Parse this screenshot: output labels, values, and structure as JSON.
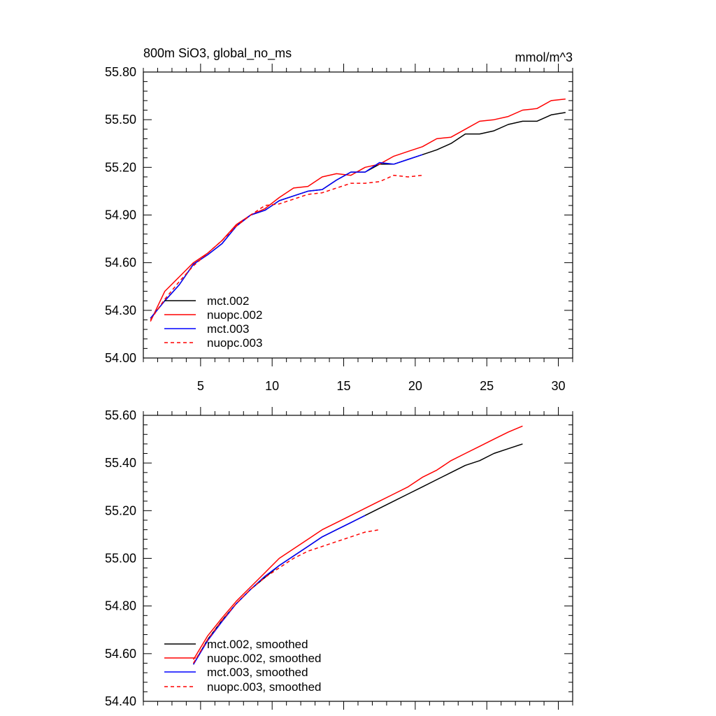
{
  "chart_data": [
    {
      "type": "line",
      "title": "800m SiO3, global_no_ms",
      "units": "mmol/m^3",
      "xlim": [
        1,
        31
      ],
      "ylim": [
        54.0,
        55.8
      ],
      "yticks": [
        "54.00",
        "54.30",
        "54.60",
        "54.90",
        "55.20",
        "55.50",
        "55.80"
      ],
      "xticks": [
        "5",
        "10",
        "15",
        "20",
        "25",
        "30"
      ],
      "legend_position": "bottom-left",
      "series": [
        {
          "name": "mct.002",
          "color": "#000000",
          "dash": "solid",
          "x": [
            1.5,
            2.5,
            3.5,
            4.5,
            5.5,
            6.5,
            7.5,
            8.5,
            9.5,
            10.5,
            11.5,
            12.5,
            13.5,
            14.5,
            15.5,
            16.5,
            17.5,
            18.5,
            19.5,
            20.5,
            21.5,
            22.5,
            23.5,
            24.5,
            25.5,
            26.5,
            27.5,
            28.5,
            29.5,
            30.5
          ],
          "y": [
            54.25,
            54.36,
            54.46,
            54.59,
            54.65,
            54.72,
            54.83,
            54.9,
            54.93,
            54.99,
            55.02,
            55.05,
            55.06,
            55.12,
            55.17,
            55.17,
            55.22,
            55.22,
            55.25,
            55.28,
            55.31,
            55.35,
            55.41,
            55.41,
            55.43,
            55.47,
            55.49,
            55.49,
            55.53,
            55.545
          ]
        },
        {
          "name": "nuopc.002",
          "color": "#ff0000",
          "dash": "solid",
          "x": [
            1.5,
            2.5,
            3.5,
            4.5,
            5.5,
            6.5,
            7.5,
            8.5,
            9.5,
            10.5,
            11.5,
            12.5,
            13.5,
            14.5,
            15.5,
            16.5,
            17.5,
            18.5,
            19.5,
            20.5,
            21.5,
            22.5,
            23.5,
            24.5,
            25.5,
            26.5,
            27.5,
            28.5,
            29.5,
            30.5
          ],
          "y": [
            54.23,
            54.42,
            54.51,
            54.6,
            54.66,
            54.74,
            54.84,
            54.9,
            54.94,
            55.01,
            55.07,
            55.08,
            55.14,
            55.16,
            55.15,
            55.2,
            55.22,
            55.27,
            55.3,
            55.33,
            55.38,
            55.39,
            55.44,
            55.49,
            55.5,
            55.52,
            55.56,
            55.57,
            55.62,
            55.63
          ]
        },
        {
          "name": "mct.003",
          "color": "#0000ff",
          "dash": "solid",
          "x": [
            1.5,
            2.5,
            3.5,
            4.5,
            5.5,
            6.5,
            7.5,
            8.5,
            9.5,
            10.5,
            11.5,
            12.5,
            13.5,
            14.5,
            15.5,
            16.5,
            17.5,
            18.5,
            19.5,
            20.5
          ],
          "y": [
            54.25,
            54.36,
            54.46,
            54.59,
            54.65,
            54.72,
            54.83,
            54.9,
            54.93,
            54.99,
            55.02,
            55.05,
            55.06,
            55.12,
            55.17,
            55.17,
            55.23,
            55.22,
            55.25,
            55.28
          ]
        },
        {
          "name": "nuopc.003",
          "color": "#ff0000",
          "dash": "dashed",
          "x": [
            1.5,
            2.5,
            3.5,
            4.5,
            5.5,
            6.5,
            7.5,
            8.5,
            9.5,
            10.5,
            11.5,
            12.5,
            13.5,
            14.5,
            15.5,
            16.5,
            17.5,
            18.5,
            19.5,
            20.5
          ],
          "y": [
            54.24,
            54.37,
            54.48,
            54.58,
            54.66,
            54.74,
            54.83,
            54.9,
            54.96,
            54.97,
            55.0,
            55.03,
            55.04,
            55.07,
            55.1,
            55.1,
            55.11,
            55.15,
            55.14,
            55.15
          ]
        }
      ]
    },
    {
      "type": "line",
      "title": "",
      "units": "",
      "xlim": [
        1,
        31
      ],
      "ylim": [
        54.4,
        55.6
      ],
      "yticks": [
        "54.40",
        "54.60",
        "54.80",
        "55.00",
        "55.20",
        "55.40",
        "55.60"
      ],
      "xticks": [],
      "legend_position": "bottom-left",
      "series": [
        {
          "name": "mct.002, smoothed",
          "color": "#000000",
          "dash": "solid",
          "x": [
            4.5,
            5.5,
            6.5,
            7.5,
            8.5,
            9.5,
            10.5,
            11.5,
            12.5,
            13.5,
            14.5,
            15.5,
            16.5,
            17.5,
            18.5,
            19.5,
            20.5,
            21.5,
            22.5,
            23.5,
            24.5,
            25.5,
            26.5,
            27.5
          ],
          "y": [
            54.555,
            54.66,
            54.74,
            54.81,
            54.87,
            54.92,
            54.97,
            55.01,
            55.05,
            55.09,
            55.12,
            55.15,
            55.18,
            55.21,
            55.24,
            55.27,
            55.3,
            55.33,
            55.36,
            55.39,
            55.41,
            55.44,
            55.46,
            55.48
          ]
        },
        {
          "name": "nuopc.002, smoothed",
          "color": "#ff0000",
          "dash": "solid",
          "x": [
            4.5,
            5.5,
            6.5,
            7.5,
            8.5,
            9.5,
            10.5,
            11.5,
            12.5,
            13.5,
            14.5,
            15.5,
            16.5,
            17.5,
            18.5,
            19.5,
            20.5,
            21.5,
            22.5,
            23.5,
            24.5,
            25.5,
            26.5,
            27.5
          ],
          "y": [
            54.575,
            54.675,
            54.75,
            54.82,
            54.88,
            54.94,
            55.0,
            55.04,
            55.08,
            55.12,
            55.15,
            55.18,
            55.21,
            55.24,
            55.27,
            55.3,
            55.34,
            55.37,
            55.41,
            55.44,
            55.47,
            55.5,
            55.53,
            55.555
          ]
        },
        {
          "name": "mct.003, smoothed",
          "color": "#0000ff",
          "dash": "solid",
          "x": [
            4.5,
            5.5,
            6.5,
            7.5,
            8.5,
            9.5,
            10.5,
            11.5,
            12.5,
            13.5,
            14.5,
            15.5,
            16.5
          ],
          "y": [
            54.555,
            54.655,
            54.735,
            54.81,
            54.87,
            54.925,
            54.97,
            55.01,
            55.05,
            55.09,
            55.12,
            55.15,
            55.18
          ]
        },
        {
          "name": "nuopc.003, smoothed",
          "color": "#ff0000",
          "dash": "dashed",
          "x": [
            4.5,
            5.5,
            6.5,
            7.5,
            8.5,
            9.5,
            10.5,
            11.5,
            12.5,
            13.5,
            14.5,
            15.5,
            16.5,
            17.5
          ],
          "y": [
            54.56,
            54.66,
            54.74,
            54.81,
            54.87,
            54.92,
            54.96,
            55.0,
            55.03,
            55.05,
            55.07,
            55.09,
            55.11,
            55.12
          ]
        }
      ]
    }
  ]
}
